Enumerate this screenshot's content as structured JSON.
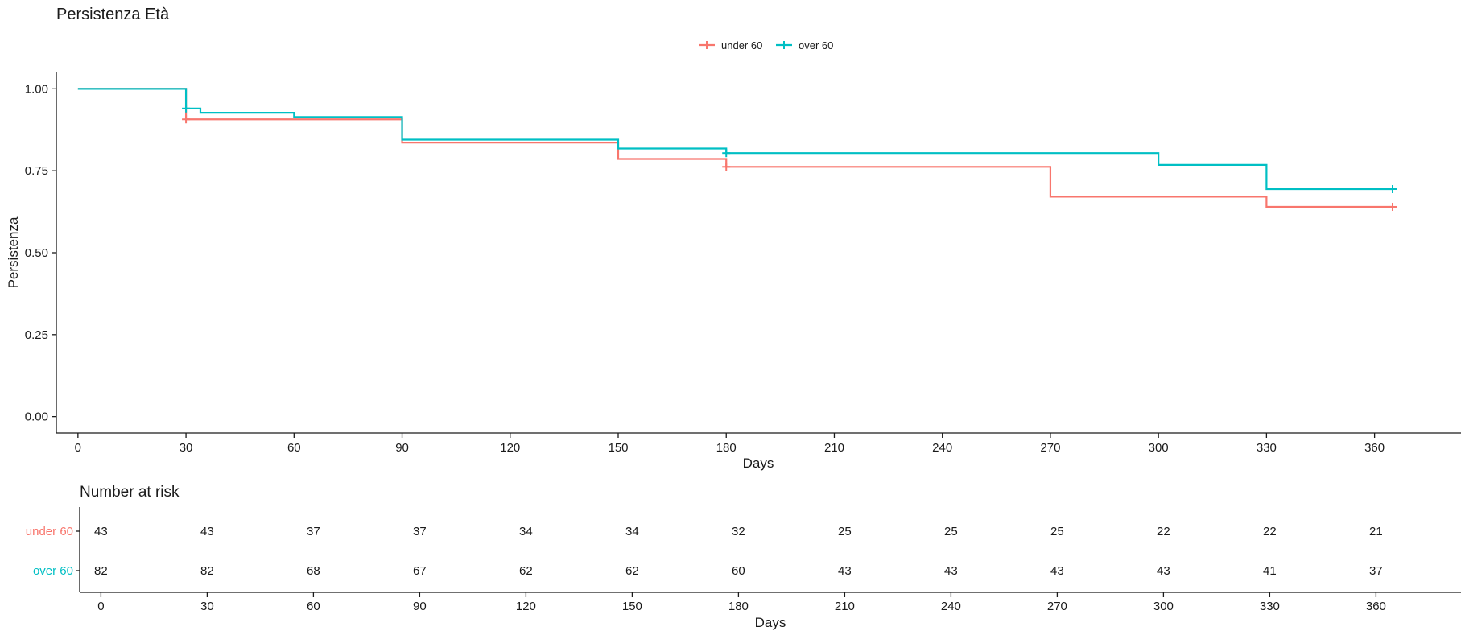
{
  "chart_data": [
    {
      "type": "line",
      "subtype": "step",
      "title": "Persistenza Età",
      "xlabel": "Days",
      "ylabel": "Persistenza",
      "xlim": [
        -6,
        384
      ],
      "ylim": [
        -0.05,
        1.05
      ],
      "xticks": [
        0,
        30,
        60,
        90,
        120,
        150,
        180,
        210,
        240,
        270,
        300,
        330,
        360
      ],
      "yticks": [
        0.0,
        0.25,
        0.5,
        0.75,
        1.0
      ],
      "ytick_labels": [
        "0.00",
        "0.25",
        "0.50",
        "0.75",
        "1.00"
      ],
      "grid": false,
      "legend_position": "top",
      "series": [
        {
          "name": "under 60",
          "color": "#F8766D",
          "steps": [
            [
              0,
              1.0
            ],
            [
              30,
              0.907
            ],
            [
              90,
              0.836
            ],
            [
              150,
              0.786
            ],
            [
              180,
              0.762
            ],
            [
              270,
              0.671
            ],
            [
              330,
              0.64
            ],
            [
              365,
              0.64
            ]
          ],
          "censor": [
            [
              30,
              0.907
            ],
            [
              180,
              0.762
            ],
            [
              365,
              0.64
            ]
          ]
        },
        {
          "name": "over 60",
          "color": "#00BFC4",
          "steps": [
            [
              0,
              1.0
            ],
            [
              30,
              0.94
            ],
            [
              34,
              0.927
            ],
            [
              60,
              0.914
            ],
            [
              90,
              0.845
            ],
            [
              150,
              0.818
            ],
            [
              180,
              0.804
            ],
            [
              300,
              0.768
            ],
            [
              330,
              0.694
            ],
            [
              365,
              0.694
            ]
          ],
          "censor": [
            [
              30,
              0.94
            ],
            [
              180,
              0.804
            ],
            [
              365,
              0.694
            ]
          ]
        }
      ]
    },
    {
      "type": "table",
      "title": "Number at risk",
      "xlabel": "Days",
      "columns": [
        0,
        30,
        60,
        90,
        120,
        150,
        180,
        210,
        240,
        270,
        300,
        330,
        360
      ],
      "rows": [
        {
          "label": "under 60",
          "color": "#F8766D",
          "values": [
            43,
            43,
            37,
            37,
            34,
            34,
            32,
            25,
            25,
            25,
            22,
            22,
            21
          ]
        },
        {
          "label": "over 60",
          "color": "#00BFC4",
          "values": [
            82,
            82,
            68,
            67,
            62,
            62,
            60,
            43,
            43,
            43,
            43,
            41,
            37
          ]
        }
      ]
    }
  ]
}
